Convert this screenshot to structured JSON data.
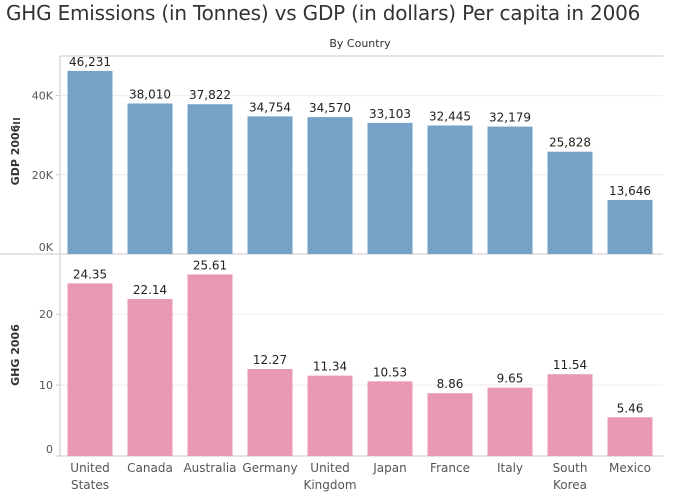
{
  "title": "GHG Emissions (in Tonnes) vs GDP (in dollars) Per capita in 2006",
  "subtitle": "By Country",
  "chart_data": [
    {
      "type": "bar",
      "ylabel": "GDP 2006",
      "ylim": [
        0,
        50000
      ],
      "yticks": [
        {
          "value": 0,
          "label": "0K"
        },
        {
          "value": 20000,
          "label": "20K"
        },
        {
          "value": 40000,
          "label": "40K"
        }
      ],
      "color": "#76a2c8",
      "categories": [
        "United States",
        "Canada",
        "Australia",
        "Germany",
        "United Kingdom",
        "Japan",
        "France",
        "Italy",
        "South Korea",
        "Mexico"
      ],
      "values": [
        46231,
        38010,
        37822,
        34754,
        34570,
        33103,
        32445,
        32179,
        25828,
        13646
      ],
      "value_labels": [
        "46,231",
        "38,010",
        "37,822",
        "34,754",
        "34,570",
        "33,103",
        "32,445",
        "32,179",
        "25,828",
        "13,646"
      ]
    },
    {
      "type": "bar",
      "ylabel": "GHG 2006",
      "ylim": [
        0,
        28.5
      ],
      "yticks": [
        {
          "value": 0,
          "label": "0"
        },
        {
          "value": 10,
          "label": "10"
        },
        {
          "value": 20,
          "label": "20"
        }
      ],
      "color": "#e899b1",
      "categories": [
        "United States",
        "Canada",
        "Australia",
        "Germany",
        "United Kingdom",
        "Japan",
        "France",
        "Italy",
        "South Korea",
        "Mexico"
      ],
      "values": [
        24.35,
        22.14,
        25.61,
        12.27,
        11.34,
        10.53,
        8.86,
        9.65,
        11.54,
        5.46
      ],
      "value_labels": [
        "24.35",
        "22.14",
        "25.61",
        "12.27",
        "11.34",
        "10.53",
        "8.86",
        "9.65",
        "11.54",
        "5.46"
      ]
    }
  ],
  "x_labels": [
    [
      "United",
      "States"
    ],
    [
      "Canada"
    ],
    [
      "Australia"
    ],
    [
      "Germany"
    ],
    [
      "United",
      "Kingdom"
    ],
    [
      "Japan"
    ],
    [
      "France"
    ],
    [
      "Italy"
    ],
    [
      "South",
      "Korea"
    ],
    [
      "Mexico"
    ]
  ]
}
